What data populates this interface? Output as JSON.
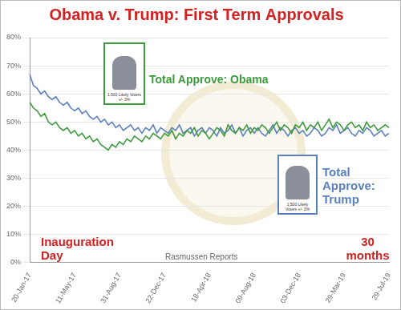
{
  "chart_data": {
    "type": "line",
    "title": "Obama v. Trump: First Term Approvals",
    "annotations": [
      "Inauguration Day",
      "30 months",
      "Rasmussen Reports",
      "1,500 Likely Voters +/- 3%",
      "1,500 Likely Voters +/- 3%"
    ],
    "categories": [
      "20-Jan-17",
      null,
      null,
      null,
      null,
      null,
      null,
      null,
      null,
      null,
      null,
      null,
      "11-May-17",
      null,
      null,
      null,
      null,
      null,
      null,
      null,
      null,
      null,
      null,
      null,
      "31-Aug-17",
      null,
      null,
      null,
      null,
      null,
      null,
      null,
      null,
      null,
      null,
      null,
      "22-Dec-17",
      null,
      null,
      null,
      null,
      null,
      null,
      null,
      null,
      null,
      null,
      null,
      "18-Apr-18",
      null,
      null,
      null,
      null,
      null,
      null,
      null,
      null,
      null,
      null,
      null,
      "09-Aug-18",
      null,
      null,
      null,
      null,
      null,
      null,
      null,
      null,
      null,
      null,
      null,
      "03-Dec-18",
      null,
      null,
      null,
      null,
      null,
      null,
      null,
      null,
      null,
      null,
      null,
      "29-Mar-19",
      null,
      null,
      null,
      null,
      null,
      null,
      null,
      null,
      null,
      null,
      null,
      "29-Jul-19"
    ],
    "series": [
      {
        "name": "Total Approve: Obama",
        "color": "#3d9a3d",
        "values": [
          57,
          55,
          54,
          52,
          53,
          50,
          49,
          50,
          48,
          47,
          48,
          46,
          47,
          45,
          46,
          44,
          45,
          43,
          44,
          42,
          41,
          40,
          42,
          41,
          43,
          42,
          44,
          43,
          45,
          44,
          43,
          45,
          44,
          46,
          45,
          44,
          46,
          45,
          47,
          44,
          46,
          45,
          47,
          46,
          48,
          45,
          47,
          46,
          44,
          46,
          48,
          47,
          45,
          49,
          47,
          46,
          48,
          47,
          49,
          46,
          48,
          47,
          49,
          48,
          46,
          48,
          50,
          47,
          49,
          48,
          46,
          49,
          48,
          50,
          47,
          49,
          48,
          50,
          47,
          49,
          51,
          48,
          50,
          49,
          47,
          49,
          50,
          48,
          49,
          47,
          50,
          48,
          49,
          47,
          48,
          49,
          48
        ]
      },
      {
        "name": "Total Approve: Trump",
        "color": "#5b80c0",
        "values": [
          67,
          63,
          62,
          60,
          61,
          59,
          58,
          59,
          57,
          56,
          57,
          55,
          54,
          55,
          53,
          54,
          52,
          51,
          52,
          50,
          51,
          49,
          50,
          48,
          49,
          47,
          48,
          49,
          47,
          48,
          46,
          48,
          47,
          49,
          46,
          48,
          47,
          46,
          48,
          47,
          49,
          46,
          47,
          48,
          45,
          47,
          48,
          46,
          48,
          47,
          45,
          48,
          46,
          47,
          49,
          46,
          48,
          45,
          47,
          48,
          46,
          48,
          46,
          45,
          47,
          49,
          46,
          48,
          47,
          45,
          47,
          48,
          46,
          47,
          45,
          46,
          48,
          47,
          45,
          46,
          48,
          47,
          49,
          46,
          47,
          48,
          46,
          45,
          47,
          46,
          48,
          47,
          45,
          46,
          47,
          45,
          46
        ]
      }
    ],
    "ylim": [
      0,
      80
    ],
    "yticks": [
      {
        "value": 0,
        "label": "0%"
      },
      {
        "value": 10,
        "label": "10%"
      },
      {
        "value": 20,
        "label": "20%"
      },
      {
        "value": 30,
        "label": "30%"
      },
      {
        "value": 40,
        "label": "40%"
      },
      {
        "value": 50,
        "label": "50%"
      },
      {
        "value": 60,
        "label": "60%"
      },
      {
        "value": 70,
        "label": "70%"
      },
      {
        "value": 80,
        "label": "80%"
      }
    ],
    "grid": true
  }
}
